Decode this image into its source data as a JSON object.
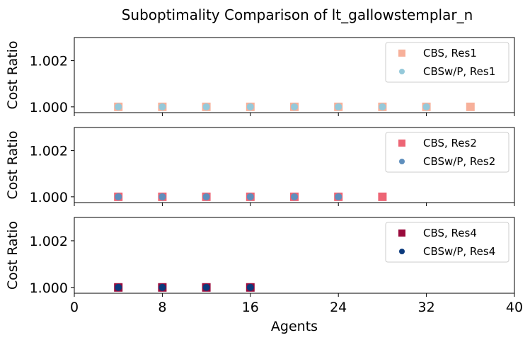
{
  "chart_data": {
    "title": "Suboptimality Comparison of lt_gallowstemplar_n",
    "xlabel": "Agents",
    "xlim": [
      0,
      40
    ],
    "xticks": [
      0,
      8,
      16,
      24,
      32,
      40
    ],
    "xtick_labels": [
      "0",
      "8",
      "16",
      "24",
      "32",
      "40"
    ],
    "panels": [
      {
        "type": "scatter",
        "ylabel": "Cost Ratio",
        "ylim": [
          0.99975,
          1.003
        ],
        "yticks": [
          1.0,
          1.002
        ],
        "ytick_labels": [
          "1.000",
          "1.002"
        ],
        "legend_position": "top-right",
        "series": [
          {
            "name": "CBS, Res1",
            "marker": "square",
            "color": "#f7b09a",
            "x": [
              4,
              8,
              12,
              16,
              20,
              24,
              28,
              32,
              36
            ],
            "y": [
              1,
              1,
              1,
              1,
              1,
              1,
              1,
              1,
              1
            ]
          },
          {
            "name": "CBSw/P, Res1",
            "marker": "circle",
            "color": "#95c9da",
            "x": [
              4,
              8,
              12,
              16,
              20,
              24,
              28,
              32
            ],
            "y": [
              1,
              1,
              1,
              1,
              1,
              1,
              1,
              1
            ]
          }
        ]
      },
      {
        "type": "scatter",
        "ylabel": "Cost Ratio",
        "ylim": [
          0.99975,
          1.003
        ],
        "yticks": [
          1.0,
          1.002
        ],
        "ytick_labels": [
          "1.000",
          "1.002"
        ],
        "legend_position": "top-right",
        "series": [
          {
            "name": "CBS, Res2",
            "marker": "square",
            "color": "#ed6575",
            "x": [
              4,
              8,
              12,
              16,
              20,
              24,
              28
            ],
            "y": [
              1,
              1,
              1,
              1,
              1,
              1,
              1
            ]
          },
          {
            "name": "CBSw/P, Res2",
            "marker": "circle",
            "color": "#5f8fbd",
            "x": [
              4,
              8,
              12,
              16,
              20,
              24
            ],
            "y": [
              1,
              1,
              1,
              1,
              1,
              1
            ]
          }
        ]
      },
      {
        "type": "scatter",
        "ylabel": "Cost Ratio",
        "ylim": [
          0.99975,
          1.003
        ],
        "yticks": [
          1.0,
          1.002
        ],
        "ytick_labels": [
          "1.000",
          "1.002"
        ],
        "legend_position": "top-right",
        "series": [
          {
            "name": "CBS, Res4",
            "marker": "square",
            "color": "#990a3c",
            "x": [
              4,
              8,
              12,
              16
            ],
            "y": [
              1,
              1,
              1,
              1
            ]
          },
          {
            "name": "CBSw/P, Res4",
            "marker": "circle",
            "color": "#0c3a7d",
            "x": [
              4,
              8,
              12,
              16
            ],
            "y": [
              1,
              1,
              1,
              1
            ]
          }
        ]
      }
    ]
  }
}
